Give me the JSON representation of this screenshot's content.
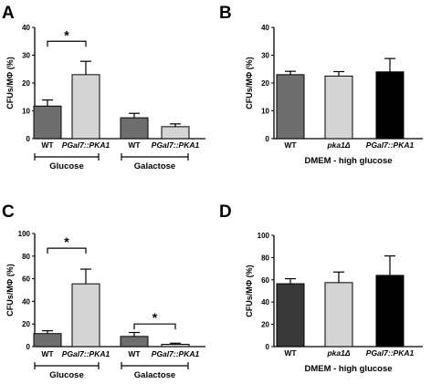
{
  "chart_data": [
    {
      "panel": "A",
      "type": "bar",
      "ylabel": "CFUs/MΦ (%)",
      "ylim": [
        0,
        40
      ],
      "yticks": [
        0,
        10,
        20,
        30,
        40
      ],
      "categories": [
        "WT",
        "PGal7::PKA1",
        "WT",
        "PGal7::PKA1"
      ],
      "category_italic": [
        false,
        true,
        false,
        true
      ],
      "values": [
        11.7,
        23.0,
        7.5,
        4.3
      ],
      "errors": [
        2.2,
        4.8,
        1.6,
        1.0
      ],
      "colors": [
        "#6e6e6e",
        "#d4d4d4",
        "#6e6e6e",
        "#d4d4d4"
      ],
      "groups": [
        {
          "label": "Glucose",
          "start": 0,
          "end": 1
        },
        {
          "label": "Galactose",
          "start": 2,
          "end": 3
        }
      ],
      "significance": [
        {
          "from": 0,
          "to": 1,
          "label": "*",
          "y": 35
        }
      ]
    },
    {
      "panel": "B",
      "type": "bar",
      "ylabel": "CFUs/MΦ (%)",
      "xlabel": "DMEM - high glucose",
      "ylim": [
        0,
        40
      ],
      "yticks": [
        0,
        10,
        20,
        30,
        40
      ],
      "categories": [
        "WT",
        "pka1Δ",
        "PGal7::PKA1"
      ],
      "category_italic": [
        false,
        true,
        true
      ],
      "values": [
        23.0,
        22.5,
        24.0
      ],
      "errors": [
        1.2,
        1.6,
        4.8
      ],
      "colors": [
        "#6e6e6e",
        "#d4d4d4",
        "#000000"
      ],
      "groups": [],
      "significance": []
    },
    {
      "panel": "C",
      "type": "bar",
      "ylabel": "CFUs/MΦ (%)",
      "ylim": [
        0,
        100
      ],
      "yticks": [
        0,
        20,
        40,
        60,
        80,
        100
      ],
      "categories": [
        "WT",
        "PGal7::PKA1",
        "WT",
        "PGal7::PKA1"
      ],
      "category_italic": [
        false,
        true,
        false,
        true
      ],
      "values": [
        11.5,
        55.5,
        9.0,
        2.0
      ],
      "errors": [
        2.5,
        13.0,
        3.5,
        1.0
      ],
      "colors": [
        "#6e6e6e",
        "#d4d4d4",
        "#6e6e6e",
        "#d4d4d4"
      ],
      "groups": [
        {
          "label": "Glucose",
          "start": 0,
          "end": 1
        },
        {
          "label": "Galactose",
          "start": 2,
          "end": 3
        }
      ],
      "significance": [
        {
          "from": 0,
          "to": 1,
          "label": "*",
          "y": 87
        },
        {
          "from": 2,
          "to": 3,
          "label": "*",
          "y": 20
        }
      ]
    },
    {
      "panel": "D",
      "type": "bar",
      "ylabel": "CFUs/MΦ (%)",
      "xlabel": "DMEM - high glucose",
      "ylim": [
        0,
        100
      ],
      "yticks": [
        0,
        20,
        40,
        60,
        80,
        100
      ],
      "categories": [
        "WT",
        "pka1Δ",
        "PGal7::PKA1"
      ],
      "category_italic": [
        false,
        true,
        true
      ],
      "values": [
        56.5,
        57.5,
        64.0
      ],
      "errors": [
        4.5,
        9.5,
        17.5
      ],
      "colors": [
        "#383838",
        "#d4d4d4",
        "#000000"
      ],
      "groups": [],
      "significance": []
    }
  ]
}
